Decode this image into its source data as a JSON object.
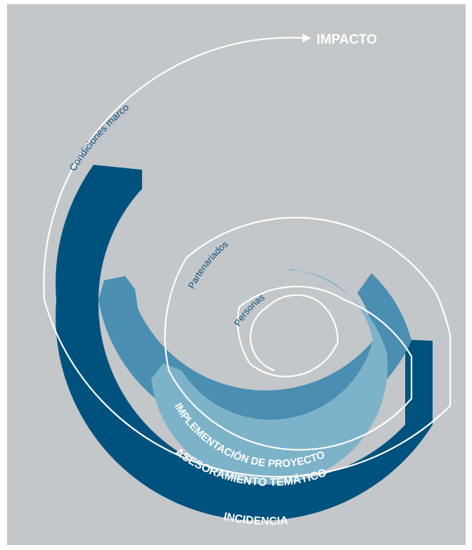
{
  "diagram": {
    "background_color": "#c3c7ca",
    "spiral_line_color": "#ffffff",
    "impact_label": "IMPACTO",
    "spiral_labels": {
      "outer": "Condiciones marco",
      "middle": "Partenariados",
      "inner": "Personas"
    },
    "bands": [
      {
        "name": "inner-band",
        "label": "IMPLEMENTACIÓN DE PROYECTO",
        "color": "#7db3c9"
      },
      {
        "name": "middle-band",
        "label": "ASESORAMIENTO TEMÁTICO",
        "color": "#4a8fb2"
      },
      {
        "name": "outer-band",
        "label": "INCIDENCIA",
        "color": "#00527e"
      }
    ]
  }
}
